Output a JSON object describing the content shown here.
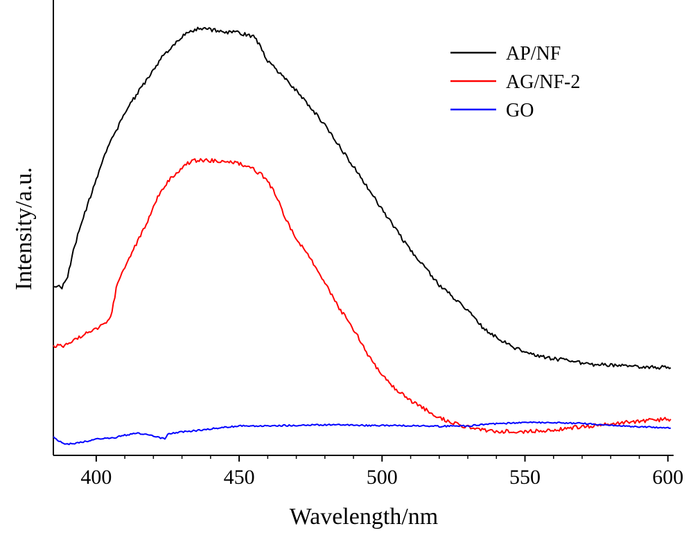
{
  "chart_data": {
    "type": "line",
    "title": "",
    "xlabel": "Wavelength/nm",
    "ylabel": "Intensity/a.u.",
    "xlim": [
      385,
      602
    ],
    "ylim": [
      0,
      100
    ],
    "xticks": [
      400,
      450,
      500,
      550,
      600
    ],
    "xtick_labels": [
      "400",
      "450",
      "500",
      "550",
      "600"
    ],
    "y_tick_labels_shown": false,
    "grid": false,
    "legend_position": "top-right",
    "series": [
      {
        "name": "AP/NF",
        "color": "#000000",
        "x": [
          385,
          388,
          390,
          392,
          394,
          396,
          398,
          400,
          402,
          405,
          408,
          410,
          413,
          415,
          418,
          420,
          423,
          425,
          428,
          430,
          432,
          435,
          438,
          440,
          445,
          450,
          455,
          457,
          460,
          463,
          466,
          470,
          475,
          480,
          485,
          490,
          495,
          500,
          505,
          510,
          515,
          520,
          525,
          530,
          535,
          540,
          545,
          550,
          555,
          560,
          565,
          570,
          575,
          580,
          585,
          590,
          595,
          600,
          601
        ],
        "y": [
          38.5,
          38.5,
          41,
          47,
          52,
          56,
          60,
          64,
          68,
          73,
          77,
          80,
          83,
          85,
          88,
          90,
          93,
          94.5,
          96.5,
          97.8,
          98.8,
          99.6,
          99.8,
          99.5,
          99,
          98.8,
          98,
          96,
          92,
          90,
          88,
          85,
          81,
          77,
          72,
          67,
          62,
          57,
          52,
          47,
          43,
          39,
          36,
          33,
          29,
          26.5,
          24.5,
          23,
          22,
          21.5,
          21,
          20.5,
          20,
          20,
          19.8,
          19.6,
          19.5,
          19.3,
          19.3
        ]
      },
      {
        "name": "AG/NF-2",
        "color": "#ff0000",
        "x": [
          385,
          388,
          390,
          393,
          396,
          400,
          403,
          405,
          407,
          409,
          412,
          415,
          418,
          420,
          423,
          425,
          428,
          430,
          433,
          435,
          440,
          445,
          450,
          455,
          458,
          460,
          463,
          466,
          470,
          475,
          480,
          485,
          490,
          495,
          500,
          505,
          510,
          515,
          520,
          525,
          530,
          535,
          540,
          545,
          550,
          555,
          560,
          565,
          570,
          575,
          580,
          585,
          590,
          595,
          600,
          601
        ],
        "y": [
          24.5,
          24.5,
          24.8,
          26,
          27.5,
          28.5,
          30,
          31,
          38,
          42,
          46,
          50,
          54,
          58,
          61.5,
          63.5,
          65.5,
          66.8,
          68.2,
          68.5,
          68.5,
          68.3,
          67.8,
          66.5,
          65,
          63.5,
          60,
          55,
          50,
          45,
          39.5,
          33.5,
          28.5,
          22.5,
          17.5,
          14,
          11.5,
          9.5,
          7.5,
          6.2,
          5.2,
          4.6,
          4.3,
          4.2,
          4.2,
          4.3,
          4.6,
          5,
          5.3,
          5.6,
          6,
          6.3,
          6.6,
          6.9,
          7.1,
          7.1
        ]
      },
      {
        "name": "GO",
        "color": "#0000ff",
        "x": [
          385,
          388,
          390,
          393,
          396,
          400,
          403,
          405,
          408,
          410,
          414,
          418,
          420,
          424,
          425,
          428,
          430,
          435,
          440,
          445,
          450,
          455,
          460,
          465,
          470,
          475,
          480,
          485,
          490,
          495,
          500,
          505,
          510,
          515,
          520,
          525,
          530,
          535,
          540,
          545,
          550,
          555,
          560,
          565,
          570,
          575,
          580,
          585,
          590,
          595,
          600,
          601
        ],
        "y": [
          2.8,
          1.5,
          1.2,
          1.4,
          1.8,
          2.3,
          2.7,
          2.5,
          3,
          3.3,
          3.8,
          3.5,
          3,
          2.5,
          3.6,
          3.9,
          4.1,
          4.4,
          4.8,
          5.2,
          5.5,
          5.5,
          5.5,
          5.6,
          5.6,
          5.7,
          5.8,
          5.8,
          5.7,
          5.6,
          5.6,
          5.6,
          5.6,
          5.5,
          5.4,
          5.5,
          5.5,
          5.8,
          6,
          6.2,
          6.3,
          6.3,
          6.3,
          6.2,
          6.1,
          5.9,
          5.7,
          5.5,
          5.3,
          5.2,
          5,
          5
        ]
      }
    ]
  }
}
